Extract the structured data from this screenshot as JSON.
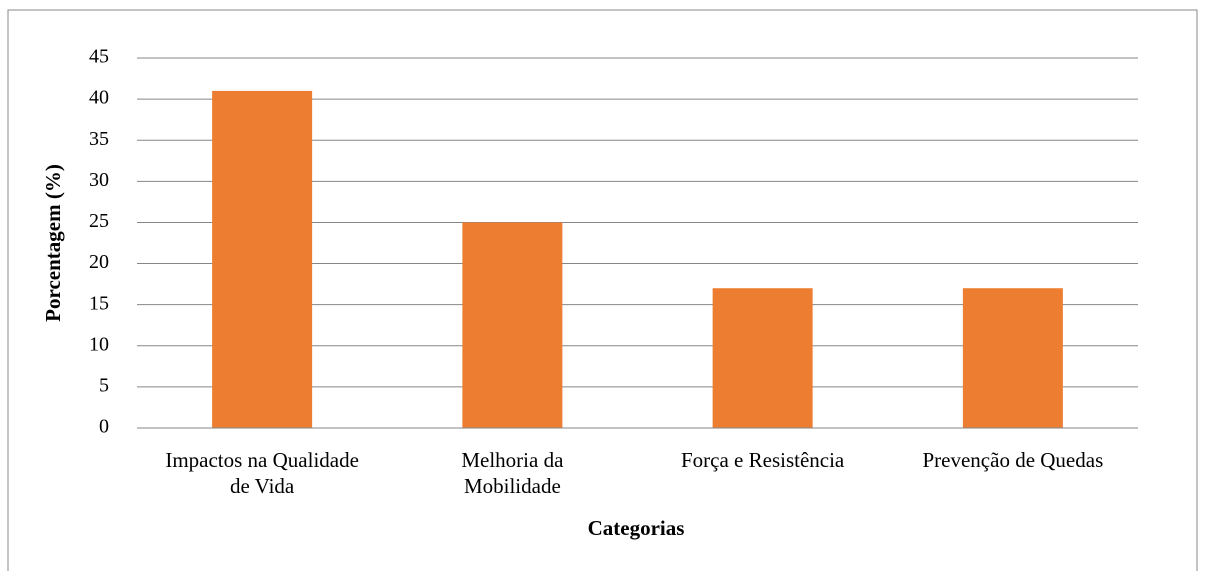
{
  "chart_data": {
    "type": "bar",
    "categories": [
      "Impactos na Qualidade\nde Vida",
      "Melhoria da\nMobilidade",
      "Força e Resistência",
      "Prevenção de Quedas"
    ],
    "values": [
      41,
      25,
      17,
      17
    ],
    "color": "#ed7d31",
    "ylim": [
      0,
      45
    ],
    "yticks": [
      0,
      5,
      10,
      15,
      20,
      25,
      30,
      35,
      40,
      45
    ],
    "grid": true,
    "y_label": "Porcentagem (%)",
    "x_label": "Categorias"
  }
}
